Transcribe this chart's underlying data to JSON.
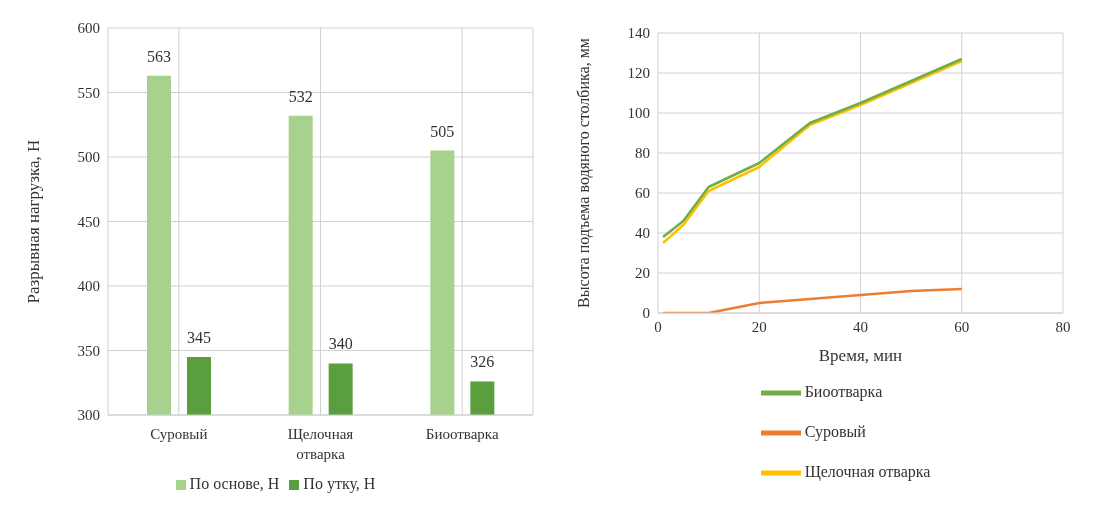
{
  "chart_data": [
    {
      "type": "bar",
      "ylabel": "Разрывная нагрузка, Н",
      "categories": [
        "Суровый",
        "Щелочная отварка",
        "Биоотварка"
      ],
      "series": [
        {
          "name": "По основе, Н",
          "color": "#a9d18e",
          "values": [
            563,
            532,
            505
          ]
        },
        {
          "name": "По утку, Н",
          "color": "#5a9e3e",
          "values": [
            345,
            340,
            326
          ]
        }
      ],
      "ylim": [
        300,
        600
      ],
      "yticks": [
        300,
        350,
        400,
        450,
        500,
        550,
        600
      ],
      "grid": true,
      "legend": "bottom",
      "data_labels": true
    },
    {
      "type": "line",
      "xlabel": "Время, мин",
      "ylabel": "Высота подъема водяного столбика, мм",
      "x": [
        1,
        5,
        10,
        20,
        30,
        40,
        50,
        60
      ],
      "series": [
        {
          "name": "Суровый",
          "color": "#ed7d31",
          "values": [
            0,
            0,
            0,
            5,
            7,
            9,
            11,
            12
          ]
        },
        {
          "name": "Щелочная отварка",
          "color": "#ffc000",
          "values": [
            35,
            44,
            61,
            73,
            94,
            104,
            115,
            126
          ]
        },
        {
          "name": "Биоотварка",
          "color": "#70ad47",
          "values": [
            38,
            46,
            63,
            75,
            95,
            105,
            116,
            127
          ]
        }
      ],
      "xlim": [
        0,
        80
      ],
      "xticks": [
        0,
        20,
        40,
        60,
        80
      ],
      "ylim": [
        0,
        140
      ],
      "yticks": [
        0,
        20,
        40,
        60,
        80,
        100,
        120,
        140
      ],
      "grid": true,
      "legend": "bottom",
      "marker": "none",
      "line_style": "solid"
    }
  ]
}
